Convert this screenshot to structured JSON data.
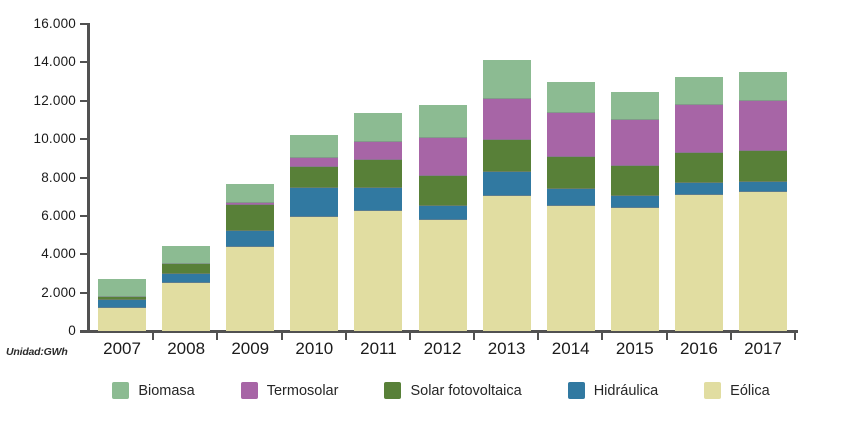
{
  "chart_data": {
    "type": "bar",
    "stacked": true,
    "unit_label": "Unidad:GWh",
    "categories": [
      "2007",
      "2008",
      "2009",
      "2010",
      "2011",
      "2012",
      "2013",
      "2014",
      "2015",
      "2016",
      "2017"
    ],
    "series": [
      {
        "name": "Eólica",
        "color": "#e1dda1",
        "values": [
          1200,
          2500,
          4400,
          5950,
          6250,
          5800,
          7050,
          6500,
          6400,
          7080,
          7250
        ]
      },
      {
        "name": "Hidráulica",
        "color": "#3179a1",
        "values": [
          420,
          460,
          790,
          1490,
          1230,
          740,
          1230,
          880,
          640,
          660,
          540
        ]
      },
      {
        "name": "Solar fotovoltaica",
        "color": "#588038",
        "values": [
          140,
          510,
          1400,
          1130,
          1450,
          1530,
          1660,
          1680,
          1580,
          1560,
          1610
        ]
      },
      {
        "name": "Termosolar",
        "color": "#a765a6",
        "values": [
          0,
          0,
          100,
          450,
          910,
          2010,
          2130,
          2310,
          2360,
          2460,
          2570
        ]
      },
      {
        "name": "Biomasa",
        "color": "#8cbb92",
        "values": [
          950,
          950,
          960,
          1200,
          1510,
          1700,
          2030,
          1610,
          1490,
          1490,
          1540
        ]
      }
    ],
    "stack_order": "bottom-to-top",
    "y_axis": {
      "min": 0,
      "max": 16000,
      "tick_step": 2000,
      "tick_labels": [
        "0",
        "2.000",
        "4.000",
        "6.000",
        "8.000",
        "10.000",
        "12.000",
        "14.000",
        "16.000"
      ]
    },
    "grid": false,
    "legend": {
      "position": "bottom",
      "items": [
        "Biomasa",
        "Termosolar",
        "Solar fotovoltaica",
        "Hidráulica",
        "Eólica"
      ]
    },
    "axis_color": "#515151",
    "text_color": "#1b1b1b"
  }
}
